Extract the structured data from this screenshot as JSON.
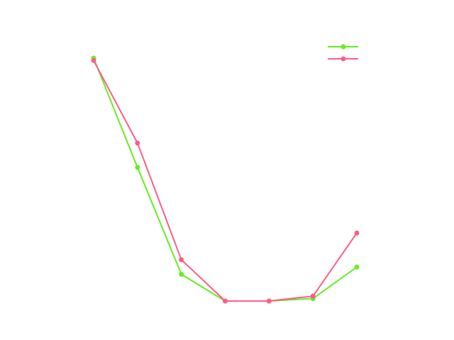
{
  "chart_data": {
    "type": "line",
    "title": "",
    "xlabel": "",
    "ylabel": "",
    "x": [
      0,
      1,
      2,
      3,
      4,
      5,
      6
    ],
    "ylim": [
      0,
      1
    ],
    "grid": false,
    "legend_placement": "top-right",
    "series": [
      {
        "name": "",
        "color": "#66ee22",
        "values": [
          1.0,
          0.55,
          0.11,
          0.0,
          0.0,
          0.01,
          0.14
        ]
      },
      {
        "name": "",
        "color": "#ff5c88",
        "values": [
          0.99,
          0.65,
          0.17,
          0.0,
          0.0,
          0.02,
          0.28
        ]
      }
    ]
  }
}
